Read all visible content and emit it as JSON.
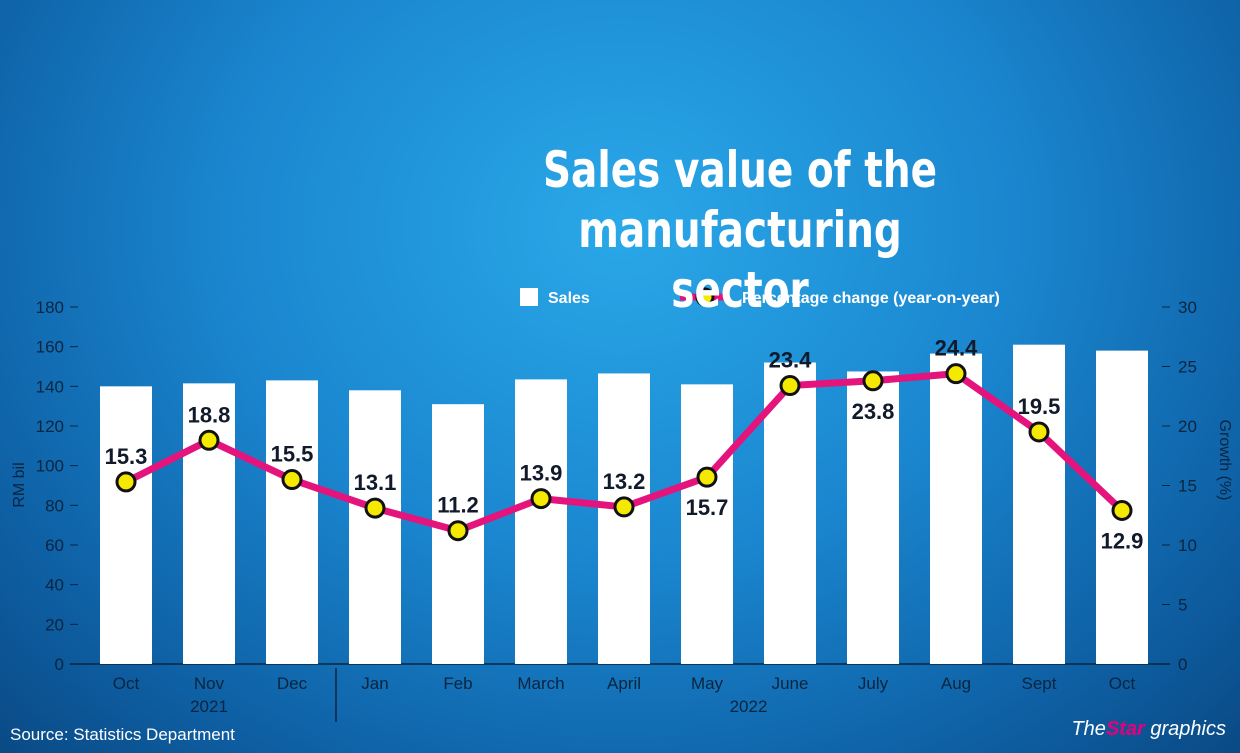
{
  "chart_data": {
    "type": "bar+line",
    "title": "Sales value of the manufacturing sector",
    "categories": [
      "Oct",
      "Nov",
      "Dec",
      "Jan",
      "Feb",
      "March",
      "April",
      "May",
      "June",
      "July",
      "Aug",
      "Sept",
      "Oct"
    ],
    "year_groups": [
      {
        "label": "2021",
        "from": 0,
        "to": 2
      },
      {
        "label": "2022",
        "from": 3,
        "to": 12
      }
    ],
    "series": [
      {
        "name": "Sales",
        "type": "bar",
        "axis": "left",
        "color": "#ffffff",
        "values": [
          140,
          141.5,
          143,
          138,
          131,
          143.5,
          146.5,
          141,
          152,
          147.5,
          156.5,
          161,
          158
        ]
      },
      {
        "name": "Percentage change (year-on-year)",
        "type": "line",
        "axis": "right",
        "color": "#e4147c",
        "marker_color": "#f5e900",
        "values": [
          15.3,
          18.8,
          15.5,
          13.1,
          11.2,
          13.9,
          13.2,
          15.7,
          23.4,
          23.8,
          24.4,
          19.5,
          12.9
        ]
      }
    ],
    "ylabel": "RM bil",
    "ylim": [
      0,
      180
    ],
    "yticks": [
      0,
      20,
      40,
      60,
      80,
      100,
      120,
      140,
      160,
      180
    ],
    "y2label": "Growth (%)",
    "y2lim": [
      0,
      30
    ],
    "y2ticks": [
      0,
      5,
      10,
      15,
      20,
      25,
      30
    ],
    "legend": "top",
    "grid": false
  },
  "source": "Source: Statistics Department",
  "brand": {
    "the": "The",
    "star": "Star",
    "graphics": " graphics"
  }
}
